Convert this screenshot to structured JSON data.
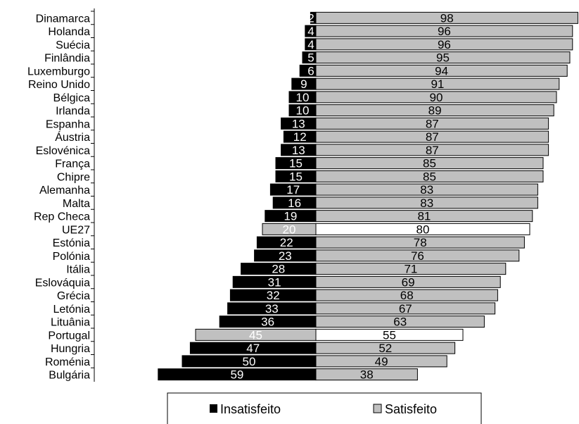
{
  "chart_data": {
    "type": "bar",
    "orientation": "horizontal",
    "stacking": "diverging",
    "categories": [
      "Dinamarca",
      "Holanda",
      "Suécia",
      "Finlândia",
      "Luxemburgo",
      "Reino Unido",
      "Bélgica",
      "Irlanda",
      "Espanha",
      "Áustria",
      "Eslovénica",
      "França",
      "Chipre",
      "Alemanha",
      "Malta",
      "Rep Checa",
      "UE27",
      "Estónia",
      "Polónia",
      "Itália",
      "Eslováquia",
      "Grécia",
      "Letónia",
      "Lituânia",
      "Portugal",
      "Hungria",
      "Roménia",
      "Bulgária"
    ],
    "series": [
      {
        "name": "Insatisfeito",
        "values": [
          2,
          4,
          4,
          5,
          6,
          9,
          10,
          10,
          13,
          12,
          13,
          15,
          15,
          17,
          16,
          19,
          20,
          22,
          23,
          28,
          31,
          32,
          33,
          36,
          45,
          47,
          50,
          59
        ]
      },
      {
        "name": "Satisfeito",
        "values": [
          98,
          96,
          96,
          95,
          94,
          91,
          90,
          89,
          87,
          87,
          87,
          85,
          85,
          83,
          83,
          81,
          80,
          78,
          76,
          71,
          69,
          68,
          67,
          63,
          55,
          52,
          49,
          38
        ]
      }
    ],
    "highlighted_categories": [
      "UE27",
      "Portugal"
    ],
    "legend_position": "bottom",
    "grid": false,
    "colors": {
      "insatisfeito": "#000000",
      "satisfeito": "#c0c0c0",
      "highlight_insatisfeito": "#c0c0c0",
      "highlight_satisfeito": "#ffffff"
    }
  }
}
